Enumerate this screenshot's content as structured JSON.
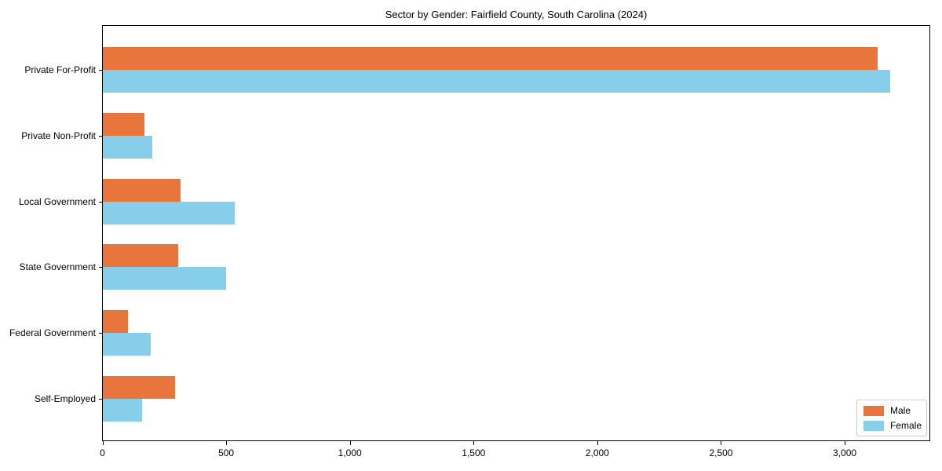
{
  "chart_data": {
    "type": "bar",
    "orientation": "horizontal",
    "title": "Sector by Gender: Fairfield County, South Carolina (2024)",
    "categories": [
      "Private For-Profit",
      "Private Non-Profit",
      "Local Government",
      "State Government",
      "Federal Government",
      "Self-Employed"
    ],
    "series": [
      {
        "name": "Male",
        "color": "#e8763c",
        "values": [
          3134,
          167,
          313,
          305,
          102,
          291
        ]
      },
      {
        "name": "Female",
        "color": "#87ceeb",
        "values": [
          3185,
          199,
          534,
          497,
          194,
          159
        ]
      }
    ],
    "xlim": [
      0,
      3344
    ],
    "x_ticks": [
      0,
      500,
      1000,
      1500,
      2000,
      2500,
      3000
    ],
    "x_tick_labels": [
      "0",
      "500",
      "1,000",
      "1,500",
      "2,000",
      "2,500",
      "3,000"
    ],
    "xlabel": "",
    "ylabel": "",
    "grid": false,
    "legend_position": "lower right"
  }
}
